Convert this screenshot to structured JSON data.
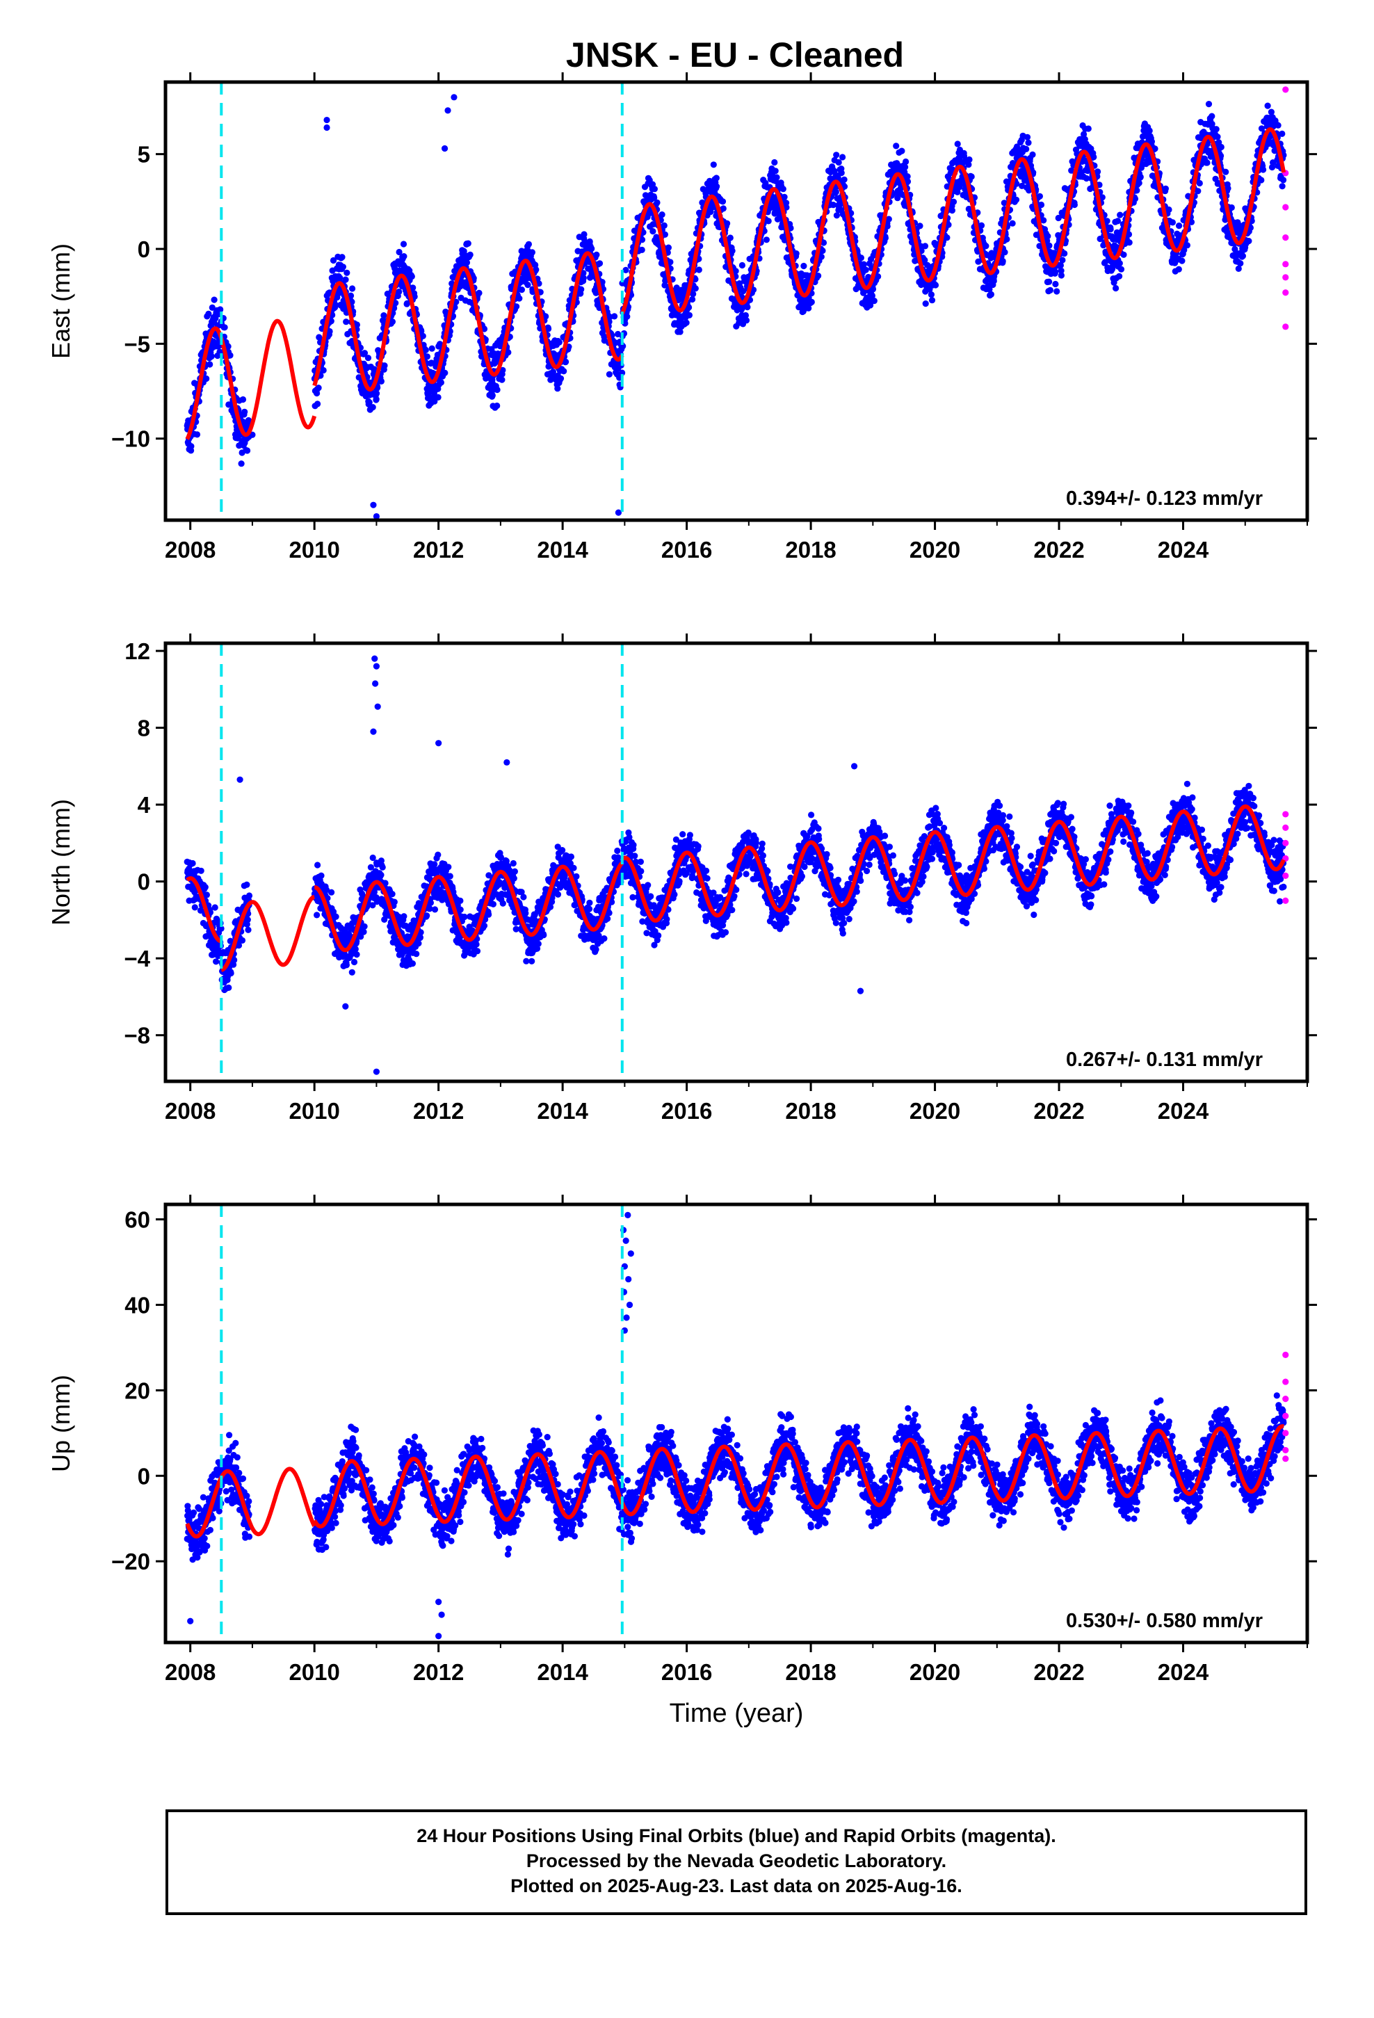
{
  "title": "JNSK  - EU - Cleaned",
  "colors": {
    "final": "#0000ff",
    "rapid": "#ff00ff",
    "model": "#ff0000",
    "break": "#00e5ee",
    "axis": "#000000"
  },
  "caption": {
    "line1": "24 Hour Positions Using Final Orbits (blue) and Rapid Orbits (magenta).",
    "line2": "Processed by the Nevada Geodetic Laboratory.",
    "line3": "Plotted on 2025-Aug-23. Last data on 2025-Aug-16."
  },
  "chart_data": [
    {
      "type": "scatter",
      "component": "East",
      "ylabel": "East (mm)",
      "xlabel": "",
      "xlim": [
        2007.6,
        2026.0
      ],
      "ylim": [
        -14.3,
        8.8
      ],
      "xticks": [
        2008,
        2010,
        2012,
        2014,
        2016,
        2018,
        2020,
        2022,
        2024
      ],
      "yticks": [
        -10,
        -5,
        0,
        5
      ],
      "rate_label": "0.394+/- 0.123 mm/yr",
      "breaks": [
        2008.5,
        2014.96
      ],
      "model": {
        "segments": [
          {
            "start": 2007.95,
            "end": 2010.0,
            "offset": -4.1,
            "amp": 2.9,
            "peak": 0.4
          },
          {
            "start": 2010.0,
            "end": 2014.96,
            "offset": -2.5,
            "amp": 2.9,
            "peak": 0.4
          },
          {
            "start": 2014.96,
            "end": 2025.62,
            "offset": -0.3,
            "amp": 2.9,
            "peak": 0.4
          }
        ],
        "rate": 0.394,
        "ref_year": 2016.0,
        "gap": [
          2008.55,
          2010.0
        ]
      },
      "scatter": {
        "noise": 1.3,
        "gap": [
          2008.95,
          2010.0
        ]
      },
      "outliers": [
        [
          2010.2,
          6.8
        ],
        [
          2010.2,
          6.4
        ],
        [
          2012.15,
          7.3
        ],
        [
          2012.25,
          8.0
        ],
        [
          2012.1,
          5.3
        ],
        [
          2010.95,
          -13.5
        ],
        [
          2011.0,
          -14.1
        ],
        [
          2014.9,
          -13.9
        ],
        [
          2009.0,
          -9.8
        ]
      ],
      "rapid": [
        [
          2025.65,
          8.4
        ],
        [
          2025.65,
          4.0
        ],
        [
          2025.65,
          2.2
        ],
        [
          2025.65,
          0.6
        ],
        [
          2025.65,
          -0.8
        ],
        [
          2025.65,
          -1.5
        ],
        [
          2025.65,
          -2.3
        ],
        [
          2025.65,
          -4.1
        ]
      ]
    },
    {
      "type": "scatter",
      "component": "North",
      "ylabel": "North (mm)",
      "xlabel": "",
      "xlim": [
        2007.6,
        2026.0
      ],
      "ylim": [
        -10.4,
        12.4
      ],
      "xticks": [
        2008,
        2010,
        2012,
        2014,
        2016,
        2018,
        2020,
        2022,
        2024
      ],
      "yticks": [
        -8,
        -4,
        0,
        4,
        8,
        12
      ],
      "rate_label": "0.267+/- 0.131 mm/yr",
      "breaks": [
        2008.5,
        2014.96
      ],
      "model": {
        "segments": [
          {
            "start": 2007.95,
            "end": 2008.5,
            "offset": 0.6,
            "amp": 1.7,
            "peak": 0.0
          },
          {
            "start": 2008.5,
            "end": 2010.0,
            "offset": -0.9,
            "amp": 1.7,
            "peak": 0.0
          },
          {
            "start": 2010.0,
            "end": 2014.96,
            "offset": -0.4,
            "amp": 1.7,
            "peak": 0.0
          },
          {
            "start": 2014.96,
            "end": 2025.62,
            "offset": -0.2,
            "amp": 1.7,
            "peak": 0.0
          }
        ],
        "rate": 0.267,
        "ref_year": 2016.0,
        "gap": [
          2008.95,
          2010.0
        ]
      },
      "scatter": {
        "noise": 1.1,
        "gap": [
          2008.95,
          2010.0
        ]
      },
      "outliers": [
        [
          2010.97,
          11.6
        ],
        [
          2011.0,
          11.2
        ],
        [
          2010.98,
          10.3
        ],
        [
          2011.02,
          9.1
        ],
        [
          2010.95,
          7.8
        ],
        [
          2012.0,
          7.2
        ],
        [
          2013.1,
          6.2
        ],
        [
          2018.7,
          6.0
        ],
        [
          2008.8,
          5.3
        ],
        [
          2011.0,
          -9.9
        ],
        [
          2010.5,
          -6.5
        ],
        [
          2018.8,
          -5.7
        ]
      ],
      "rapid": [
        [
          2025.65,
          3.5
        ],
        [
          2025.65,
          2.8
        ],
        [
          2025.65,
          2.0
        ],
        [
          2025.65,
          1.2
        ],
        [
          2025.65,
          0.3
        ],
        [
          2025.65,
          -1.0
        ]
      ]
    },
    {
      "type": "scatter",
      "component": "Up",
      "ylabel": "Up (mm)",
      "xlabel": "Time (year)",
      "xlim": [
        2007.6,
        2026.0
      ],
      "ylim": [
        -39,
        63.5
      ],
      "xticks": [
        2008,
        2010,
        2012,
        2014,
        2016,
        2018,
        2020,
        2022,
        2024
      ],
      "yticks": [
        -20,
        0,
        20,
        40,
        60
      ],
      "rate_label": "0.530+/- 0.580 mm/yr",
      "breaks": [
        2008.5,
        2014.96
      ],
      "model": {
        "segments": [
          {
            "start": 2007.95,
            "end": 2010.0,
            "offset": -2.5,
            "amp": 7.5,
            "peak": 0.6
          },
          {
            "start": 2010.0,
            "end": 2014.96,
            "offset": -1.2,
            "amp": 7.5,
            "peak": 0.6
          },
          {
            "start": 2014.96,
            "end": 2025.62,
            "offset": -1.0,
            "amp": 7.5,
            "peak": 0.6
          }
        ],
        "rate": 0.53,
        "ref_year": 2016.0,
        "gap": [
          2008.95,
          2010.0
        ]
      },
      "scatter": {
        "noise": 5.5,
        "gap": [
          2008.95,
          2010.0
        ]
      },
      "outliers": [
        [
          2015.05,
          61.0
        ],
        [
          2014.98,
          57.5
        ],
        [
          2015.02,
          55.0
        ],
        [
          2015.1,
          52.0
        ],
        [
          2015.0,
          49.0
        ],
        [
          2015.06,
          46.0
        ],
        [
          2014.99,
          43.0
        ],
        [
          2015.08,
          40.0
        ],
        [
          2015.03,
          37.0
        ],
        [
          2015.0,
          34.0
        ],
        [
          2012.0,
          -37.5
        ],
        [
          2012.05,
          -32.5
        ],
        [
          2012.0,
          -29.5
        ],
        [
          2008.0,
          -34.0
        ]
      ],
      "rapid": [
        [
          2025.65,
          28.3
        ],
        [
          2025.65,
          22.0
        ],
        [
          2025.65,
          18.0
        ],
        [
          2025.65,
          14.0
        ],
        [
          2025.65,
          10.0
        ],
        [
          2025.65,
          6.0
        ],
        [
          2025.65,
          4.0
        ]
      ]
    }
  ]
}
